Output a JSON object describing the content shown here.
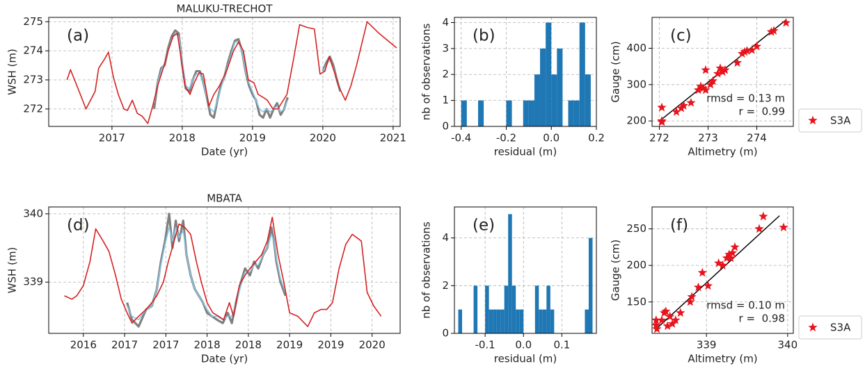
{
  "chart_data": [
    {
      "type": "line",
      "title": "MALUKU-TRECHOT",
      "panel_label": "(a)",
      "x_label": "Date (yr)",
      "y_label": "WSH (m)",
      "xlim": [
        2016.1,
        2021.1
      ],
      "xticks": [
        2017,
        2018,
        2019,
        2020,
        2021
      ],
      "ylim": [
        271.4,
        275.15
      ],
      "yticks": [
        272,
        273,
        274,
        275
      ],
      "grid": true,
      "series": [
        {
          "color": "#808080",
          "x": [
            2017.6,
            2017.65,
            2017.7,
            2017.75,
            2017.8,
            2017.85,
            2017.9,
            2017.95,
            2018.0,
            2018.05,
            2018.1,
            2018.15,
            2018.2,
            2018.25,
            2018.3,
            2018.35,
            2018.4,
            2018.45,
            2018.5,
            2018.55,
            2018.6,
            2018.65,
            2018.7,
            2018.75,
            2018.8,
            2018.85,
            2018.9,
            2018.95,
            2019.0,
            2019.05,
            2019.1,
            2019.15,
            2019.2,
            2019.25,
            2019.3,
            2019.35,
            2019.4,
            2019.45,
            2019.5,
            2019.75,
            2020.0,
            2020.05,
            2020.1,
            2020.15,
            2020.2,
            2020.25
          ],
          "values": [
            272.0,
            272.9,
            273.4,
            273.5,
            274.1,
            274.5,
            274.7,
            274.6,
            273.5,
            272.7,
            272.6,
            273.0,
            273.3,
            273.3,
            272.9,
            272.4,
            271.8,
            271.7,
            272.3,
            272.8,
            273.1,
            273.6,
            274.0,
            274.35,
            274.4,
            274.0,
            273.3,
            272.8,
            272.5,
            272.3,
            271.8,
            271.7,
            272.0,
            271.7,
            272.0,
            272.2,
            271.8,
            272.0,
            272.4,
            null,
            273.3,
            273.6,
            273.8,
            273.5,
            273.0,
            272.6
          ]
        },
        {
          "color": "#87c8e6",
          "x": [
            2017.6,
            2017.65,
            2017.7,
            2017.75,
            2017.8,
            2017.85,
            2017.9,
            2017.95,
            2018.0,
            2018.05,
            2018.1,
            2018.15,
            2018.2,
            2018.25,
            2018.3,
            2018.35,
            2018.4,
            2018.45,
            2018.5,
            2018.55,
            2018.6,
            2018.65,
            2018.7,
            2018.75,
            2018.8,
            2018.85,
            2018.9,
            2018.95,
            2019.0,
            2019.05,
            2019.1,
            2019.15,
            2019.2,
            2019.25,
            2019.3,
            2019.35,
            2019.4,
            2019.45,
            2019.5,
            2019.75,
            2020.0,
            2020.05,
            2020.1,
            2020.15,
            2020.2,
            2020.25
          ],
          "values": [
            272.2,
            272.9,
            273.3,
            273.6,
            274.0,
            274.4,
            274.6,
            274.5,
            273.6,
            272.8,
            272.7,
            273.0,
            273.2,
            273.2,
            272.9,
            272.4,
            272.0,
            271.9,
            272.3,
            272.7,
            273.1,
            273.5,
            273.9,
            274.3,
            274.3,
            274.0,
            273.3,
            272.9,
            272.6,
            272.3,
            272.0,
            271.9,
            272.0,
            271.9,
            272.0,
            272.1,
            271.9,
            272.0,
            272.3,
            null,
            273.3,
            273.5,
            273.7,
            273.4,
            273.0,
            272.7
          ]
        },
        {
          "color": "#d62020",
          "x": [
            2016.36,
            2016.41,
            2016.55,
            2016.63,
            2016.76,
            2016.81,
            2016.89,
            2016.95,
            2017.02,
            2017.09,
            2017.17,
            2017.22,
            2017.29,
            2017.36,
            2017.43,
            2017.51,
            2017.58,
            2017.65,
            2017.73,
            2017.8,
            2017.87,
            2017.93,
            2017.98,
            2018.04,
            2018.11,
            2018.17,
            2018.24,
            2018.3,
            2018.38,
            2018.45,
            2018.53,
            2018.63,
            2018.73,
            2018.8,
            2018.87,
            2018.94,
            2019.02,
            2019.08,
            2019.15,
            2019.21,
            2019.29,
            2019.36,
            2019.49,
            2019.59,
            2019.67,
            2019.78,
            2019.88,
            2019.96,
            2020.03,
            2020.09,
            2020.16,
            2020.24,
            2020.32,
            2020.4,
            2020.48,
            2020.56,
            2020.63,
            2020.8,
            2021.05
          ],
          "values": [
            273.0,
            273.35,
            272.5,
            272.0,
            272.6,
            273.4,
            273.7,
            273.95,
            273.1,
            272.5,
            272.0,
            271.95,
            272.3,
            271.85,
            271.75,
            271.5,
            272.1,
            272.8,
            273.4,
            274.0,
            274.5,
            274.6,
            273.8,
            272.8,
            272.5,
            272.9,
            273.25,
            273.2,
            272.1,
            272.5,
            272.8,
            273.3,
            274.0,
            274.3,
            274.0,
            273.0,
            272.9,
            272.5,
            272.4,
            272.3,
            272.0,
            272.0,
            272.5,
            273.8,
            274.9,
            274.8,
            274.75,
            273.2,
            273.3,
            273.8,
            273.3,
            272.7,
            272.3,
            272.8,
            273.5,
            274.3,
            275.0,
            274.6,
            274.1
          ]
        }
      ]
    },
    {
      "type": "histogram",
      "panel_label": "(b)",
      "x_label": "residual (m)",
      "y_label": "nb of observations",
      "color": "#1f77b4",
      "xlim": [
        -0.43,
        0.2
      ],
      "xticks": [
        -0.4,
        -0.2,
        {
          "value": 0,
          "label": "0.0"
        },
        0.2
      ],
      "ylim": [
        0,
        4.2
      ],
      "yticks": [
        0,
        1,
        2,
        3,
        4
      ],
      "grid": true,
      "bins": [
        -0.4,
        -0.375,
        -0.35,
        -0.325,
        -0.3,
        -0.275,
        -0.25,
        -0.225,
        -0.2,
        -0.175,
        -0.15,
        -0.125,
        -0.1,
        -0.075,
        -0.05,
        -0.025,
        0,
        0.025,
        0.05,
        0.075,
        0.1,
        0.125,
        0.15,
        0.175,
        0.2
      ],
      "counts": [
        1,
        0,
        0,
        1,
        0,
        0,
        0,
        0,
        1,
        0,
        0,
        1,
        1,
        2,
        3,
        4,
        2,
        3,
        0,
        1,
        1,
        4,
        2,
        0
      ]
    },
    {
      "type": "scatter",
      "panel_label": "(c)",
      "x_label": "Altimetry (m)",
      "y_label": "Gauge (cm)",
      "xlim": [
        271.85,
        274.75
      ],
      "xticks": [
        272,
        273,
        274
      ],
      "ylim": [
        185,
        485
      ],
      "yticks": [
        200,
        300,
        400
      ],
      "grid": true,
      "legend": "outside right",
      "annotations": [
        "rmsd = 0.13 m",
        "r =  0.99"
      ],
      "series": [
        {
          "name": "S3A",
          "color": "#e8141c",
          "x": [
            272.05,
            272.05,
            272.05,
            272.35,
            272.45,
            272.5,
            272.65,
            272.8,
            272.85,
            272.9,
            272.95,
            272.95,
            273.05,
            273.1,
            273.2,
            273.25,
            273.3,
            273.35,
            273.6,
            273.7,
            273.75,
            273.8,
            273.9,
            274.0,
            274.3,
            274.35,
            274.6
          ],
          "values": [
            200,
            197,
            237,
            225,
            235,
            242,
            250,
            285,
            295,
            290,
            285,
            340,
            300,
            310,
            330,
            345,
            335,
            340,
            360,
            385,
            390,
            393,
            395,
            405,
            445,
            448,
            470
          ]
        }
      ],
      "fit_line": {
        "color": "#000000",
        "x": [
          272.05,
          274.6
        ],
        "y": [
          205,
          478
        ]
      }
    },
    {
      "type": "line",
      "title": "MBATA",
      "panel_label": "(d)",
      "x_label": "Date (yr)",
      "y_label": "WSH (m)",
      "xlim": [
        2015.58,
        2019.84
      ],
      "xticks": [
        {
          "value": 2016,
          "label": "2016"
        },
        {
          "value": 2016.5,
          "label": "2017"
        },
        {
          "value": 2017,
          "label": "2017"
        },
        {
          "value": 2017.5,
          "label": "2018"
        },
        {
          "value": 2018,
          "label": "2018"
        },
        {
          "value": 2018.5,
          "label": "2019"
        },
        {
          "value": 2019,
          "label": "2019"
        },
        {
          "value": 2019.5,
          "label": "2020"
        }
      ],
      "ylim": [
        338.25,
        340.1
      ],
      "yticks": [
        339,
        340
      ],
      "grid": true,
      "series": [
        {
          "color": "#808080",
          "x": [
            2016.53,
            2016.59,
            2016.67,
            2016.76,
            2016.83,
            2016.89,
            2016.94,
            2016.99,
            2017.04,
            2017.08,
            2017.12,
            2017.16,
            2017.21,
            2017.25,
            2017.3,
            2017.35,
            2017.4,
            2017.45,
            2017.5,
            2017.56,
            2017.62,
            2017.69,
            2017.75,
            2017.8,
            2017.85,
            2017.91,
            2017.96,
            2018.02,
            2018.07,
            2018.12,
            2018.18,
            2018.23,
            2018.28,
            2018.31,
            2018.34,
            2018.39,
            2018.45
          ],
          "values": [
            338.7,
            338.45,
            338.35,
            338.6,
            338.65,
            338.9,
            339.3,
            339.6,
            340.0,
            339.5,
            339.9,
            339.6,
            339.9,
            339.4,
            339.1,
            338.9,
            338.8,
            338.7,
            338.55,
            338.5,
            338.45,
            338.4,
            338.55,
            338.4,
            338.7,
            339.0,
            339.2,
            339.1,
            339.3,
            339.2,
            339.4,
            339.5,
            339.8,
            339.6,
            339.3,
            339.0,
            338.8
          ]
        },
        {
          "color": "#87c8e6",
          "x": [
            2016.53,
            2016.59,
            2016.67,
            2016.76,
            2016.83,
            2016.89,
            2016.94,
            2016.99,
            2017.04,
            2017.08,
            2017.12,
            2017.16,
            2017.21,
            2017.25,
            2017.3,
            2017.35,
            2017.4,
            2017.45,
            2017.5,
            2017.56,
            2017.62,
            2017.69,
            2017.75,
            2017.8,
            2017.85,
            2017.91,
            2017.96,
            2018.02,
            2018.07,
            2018.12,
            2018.18,
            2018.23,
            2018.28,
            2018.31,
            2018.34,
            2018.39,
            2018.45
          ],
          "values": [
            338.65,
            338.5,
            338.45,
            338.6,
            338.65,
            338.9,
            339.25,
            339.55,
            339.8,
            339.6,
            339.8,
            339.65,
            339.75,
            339.4,
            339.1,
            338.9,
            338.8,
            338.7,
            338.6,
            338.5,
            338.5,
            338.45,
            338.5,
            338.5,
            338.7,
            338.95,
            339.15,
            339.15,
            339.25,
            339.25,
            339.4,
            339.5,
            339.7,
            339.6,
            339.35,
            339.05,
            338.85
          ]
        },
        {
          "color": "#d62020",
          "x": [
            2015.77,
            2015.86,
            2015.92,
            2016.0,
            2016.08,
            2016.15,
            2016.24,
            2016.31,
            2016.39,
            2016.46,
            2016.53,
            2016.59,
            2016.67,
            2016.76,
            2016.83,
            2016.89,
            2016.97,
            2017.03,
            2017.1,
            2017.16,
            2017.23,
            2017.3,
            2017.37,
            2017.43,
            2017.5,
            2017.57,
            2017.64,
            2017.7,
            2017.77,
            2017.82,
            2017.89,
            2017.96,
            2018.02,
            2018.09,
            2018.16,
            2018.23,
            2018.29,
            2018.36,
            2018.43,
            2018.5,
            2018.6,
            2018.72,
            2018.8,
            2018.88,
            2018.95,
            2019.02,
            2019.1,
            2019.18,
            2019.26,
            2019.37,
            2019.44,
            2019.52,
            2019.61
          ],
          "values": [
            338.8,
            338.75,
            338.8,
            338.95,
            339.3,
            339.78,
            339.6,
            339.45,
            339.1,
            338.75,
            338.55,
            338.4,
            338.5,
            338.6,
            338.7,
            338.8,
            339.0,
            339.3,
            339.6,
            339.85,
            339.8,
            339.7,
            339.3,
            339.0,
            338.7,
            338.55,
            338.5,
            338.45,
            338.7,
            338.5,
            338.95,
            339.1,
            339.2,
            339.3,
            339.4,
            339.6,
            339.95,
            339.4,
            339.0,
            338.55,
            338.5,
            338.35,
            338.55,
            338.6,
            338.6,
            338.7,
            339.2,
            339.55,
            339.7,
            339.6,
            338.85,
            338.65,
            338.5
          ]
        }
      ]
    },
    {
      "type": "histogram",
      "panel_label": "(e)",
      "x_label": "residual (m)",
      "y_label": "nb of observations",
      "color": "#1f77b4",
      "xlim": [
        -0.18,
        0.19
      ],
      "xticks": [
        -0.1,
        {
          "value": 0,
          "label": "0.0"
        },
        0.1
      ],
      "ylim": [
        0,
        5.3
      ],
      "yticks": [
        0,
        2,
        4
      ],
      "grid": true,
      "bins": [
        -0.17,
        -0.16,
        -0.15,
        -0.14,
        -0.13,
        -0.12,
        -0.11,
        -0.1,
        -0.09,
        -0.08,
        -0.07,
        -0.06,
        -0.05,
        -0.04,
        -0.03,
        -0.02,
        -0.01,
        0,
        0.01,
        0.02,
        0.03,
        0.04,
        0.05,
        0.06,
        0.07,
        0.08,
        0.09,
        0.1,
        0.11,
        0.12,
        0.13,
        0.14,
        0.15,
        0.16,
        0.17,
        0.18
      ],
      "counts": [
        1,
        0,
        0,
        0,
        2,
        0,
        0,
        2,
        1,
        1,
        1,
        1,
        2,
        5,
        2,
        1,
        1,
        0,
        0,
        0,
        2,
        1,
        1,
        2,
        1,
        0,
        0,
        0,
        0,
        0,
        0,
        0,
        0,
        1,
        4
      ]
    },
    {
      "type": "scatter",
      "panel_label": "(f)",
      "x_label": "Altimetry (m)",
      "y_label": "Gauge (cm)",
      "xlim": [
        338.33,
        340.07
      ],
      "xticks": [
        339,
        340
      ],
      "ylim": [
        107,
        280
      ],
      "yticks": [
        150,
        200,
        250
      ],
      "grid": true,
      "legend": "outside right",
      "annotations": [
        "rmsd = 0.10 m",
        "r =  0.98"
      ],
      "series": [
        {
          "name": "S3A",
          "color": "#e8141c",
          "x": [
            338.38,
            338.38,
            338.39,
            338.45,
            338.48,
            338.5,
            338.52,
            338.55,
            338.58,
            338.62,
            338.68,
            338.8,
            338.82,
            338.9,
            338.95,
            339.02,
            339.15,
            339.2,
            339.25,
            339.28,
            339.3,
            339.32,
            339.35,
            339.65,
            339.7,
            339.95
          ],
          "values": [
            118,
            125,
            113,
            125,
            135,
            137,
            117,
            130,
            120,
            125,
            135,
            150,
            157,
            170,
            190,
            172,
            203,
            200,
            210,
            215,
            210,
            217,
            225,
            250,
            267,
            252
          ]
        }
      ],
      "fit_line": {
        "color": "#000000",
        "x": [
          338.38,
          339.9
        ],
        "y": [
          113,
          268
        ]
      }
    }
  ]
}
